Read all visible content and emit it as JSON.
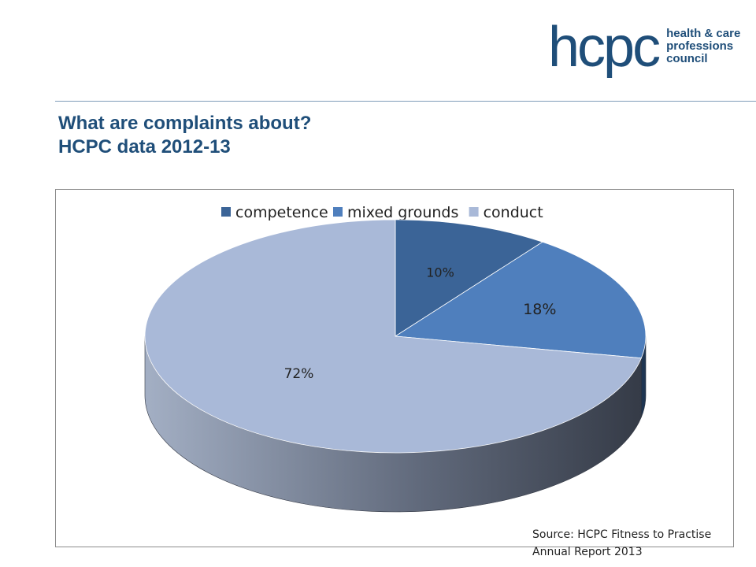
{
  "logo": {
    "word": "hcpc",
    "tagline": [
      "health & care",
      "professions",
      "council"
    ]
  },
  "title": {
    "line1": "What are complaints about?",
    "line2": "HCPC data 2012-13"
  },
  "source": {
    "line1": "Source: HCPC Fitness to Practise",
    "line2": "Annual Report 2013"
  },
  "colors": {
    "brand": "#1f4e79"
  },
  "chart_data": {
    "type": "pie",
    "style": "3d",
    "legend_position": "top",
    "categories": [
      "competence",
      "mixed grounds",
      "conduct"
    ],
    "values": [
      10,
      18,
      72
    ],
    "data_labels": [
      "10%",
      "18%",
      "72%"
    ],
    "colors": [
      "#3b6497",
      "#4f7fbd",
      "#a9b9d8"
    ],
    "side_colors": [
      "#243e5e",
      "#1e3552",
      "#5e6a7d"
    ]
  }
}
